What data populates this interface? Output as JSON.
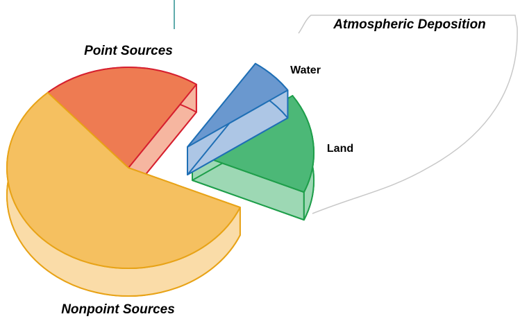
{
  "chart_data": {
    "type": "pie",
    "categories": [
      "Point Sources",
      "Nonpoint Sources",
      "Land",
      "Water"
    ],
    "values": [
      21,
      57,
      16,
      6
    ],
    "colors": [
      "#ee7b52",
      "#f5c060",
      "#4cb877",
      "#6a98cf"
    ],
    "annotation": "Atmospheric Deposition"
  }
}
